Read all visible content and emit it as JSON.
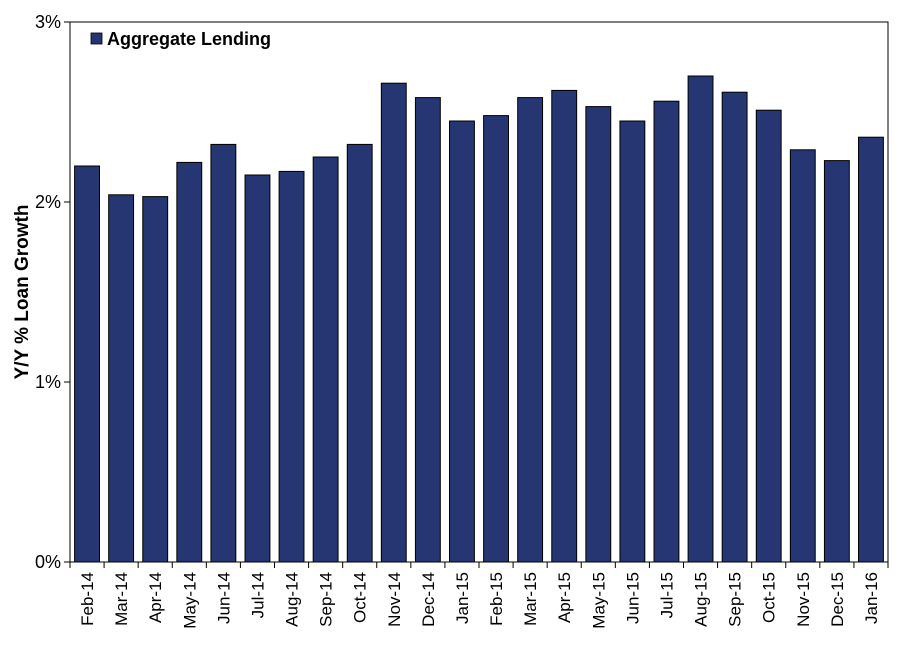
{
  "chart_data": {
    "type": "bar",
    "categories": [
      "Feb-14",
      "Mar-14",
      "Apr-14",
      "May-14",
      "Jun-14",
      "Jul-14",
      "Aug-14",
      "Sep-14",
      "Oct-14",
      "Nov-14",
      "Dec-14",
      "Jan-15",
      "Feb-15",
      "Mar-15",
      "Apr-15",
      "May-15",
      "Jun-15",
      "Jul-15",
      "Aug-15",
      "Sep-15",
      "Oct-15",
      "Nov-15",
      "Dec-15",
      "Jan-16"
    ],
    "series": [
      {
        "name": "Aggregate Lending",
        "values": [
          2.2,
          2.04,
          2.03,
          2.22,
          2.32,
          2.15,
          2.17,
          2.25,
          2.32,
          2.66,
          2.58,
          2.45,
          2.48,
          2.58,
          2.62,
          2.53,
          2.45,
          2.56,
          2.7,
          2.61,
          2.51,
          2.29,
          2.23,
          2.36
        ]
      }
    ],
    "ylabel": "Y/Y % Loan Growth",
    "ylim": [
      0,
      3
    ],
    "yticks": [
      0,
      1,
      2,
      3
    ],
    "ytick_labels": [
      "0%",
      "1%",
      "2%",
      "3%"
    ],
    "grid": false,
    "legend": "top-left",
    "bar_color": "#253672"
  }
}
